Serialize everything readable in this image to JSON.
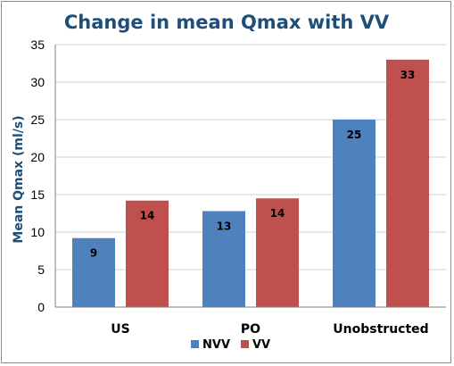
{
  "chart_data": {
    "type": "bar",
    "title": "Change in mean Qmax with VV",
    "xlabel": "",
    "ylabel": "Mean Qmax (ml/s)",
    "ylim": [
      0,
      35
    ],
    "yticks": [
      0,
      5,
      10,
      15,
      20,
      25,
      30,
      35
    ],
    "categories": [
      "US",
      "PO",
      "Unobstructed"
    ],
    "series": [
      {
        "name": "NVV",
        "color": "#4f81bd",
        "values": [
          9.2,
          12.8,
          25.0
        ],
        "labels": [
          "9",
          "13",
          "25"
        ]
      },
      {
        "name": "VV",
        "color": "#c0504d",
        "values": [
          14.2,
          14.5,
          33.0
        ],
        "labels": [
          "14",
          "14",
          "33"
        ]
      }
    ],
    "grid": true,
    "legend": "bottom"
  }
}
